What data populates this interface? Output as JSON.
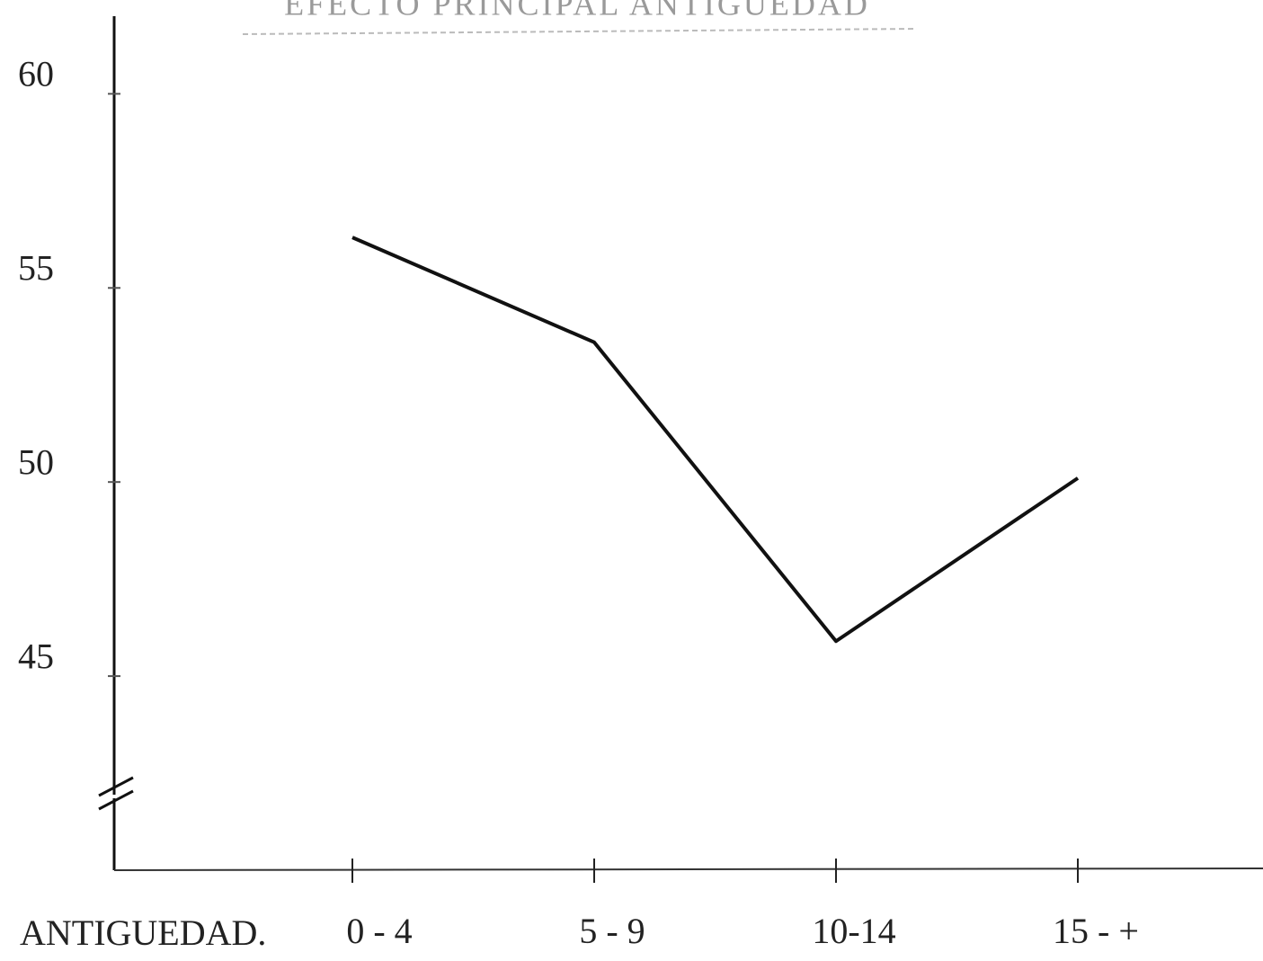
{
  "chart_data": {
    "type": "line",
    "title": "EFECTO PRINCIPAL ANTIGUEDAD",
    "x_label": "ANTIGUEDAD.",
    "categories": [
      "0 - 4",
      "5 - 9",
      "10-14",
      "15 - +"
    ],
    "values": [
      56.3,
      53.6,
      45.9,
      50.1
    ],
    "color": "#111111",
    "ylim": [
      40,
      62
    ],
    "yticks": [
      45,
      50,
      55,
      60
    ],
    "grid": false
  }
}
